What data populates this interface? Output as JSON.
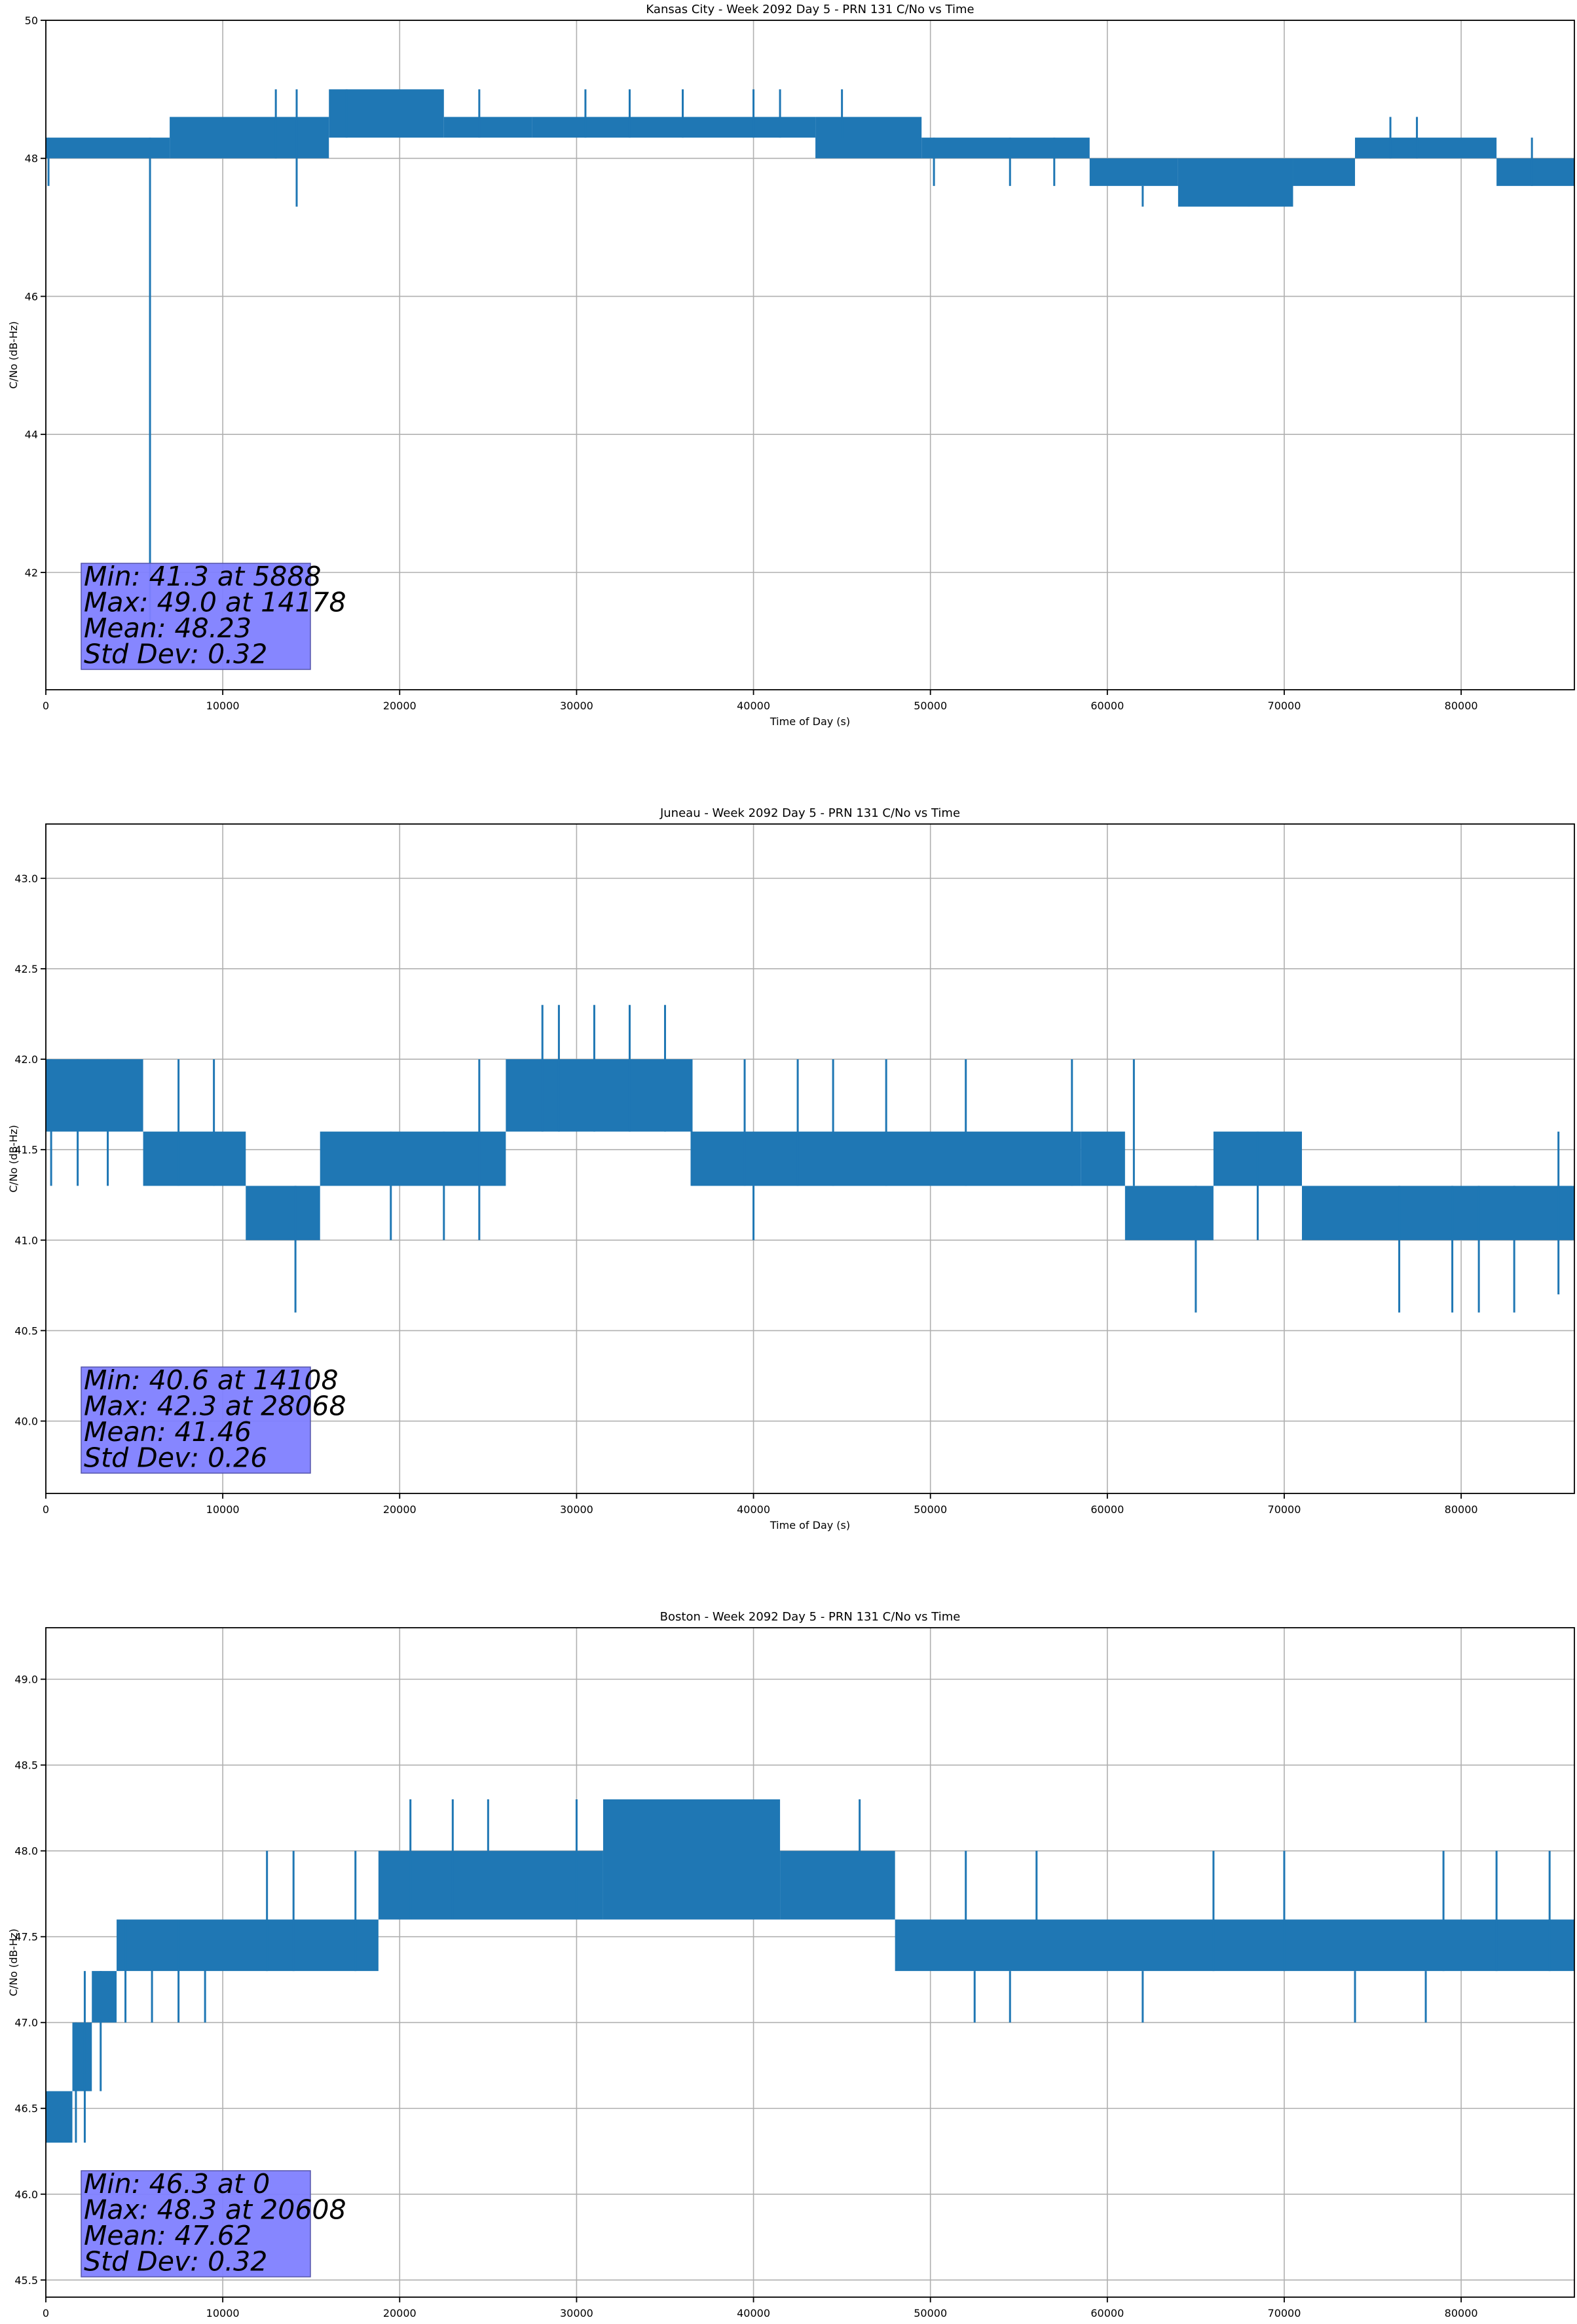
{
  "chart_data": [
    {
      "type": "line",
      "title": "Kansas City - Week 2092 Day 5 - PRN 131 C/No vs Time",
      "xlabel": "Time of Day (s)",
      "ylabel": "C/No (dB-Hz)",
      "xlim": [
        0,
        86400
      ],
      "ylim": [
        40.3,
        50
      ],
      "xticks": [
        0,
        10000,
        20000,
        30000,
        40000,
        50000,
        60000,
        70000,
        80000
      ],
      "yticks": [
        42,
        44,
        46,
        48,
        50
      ],
      "ytick_decimals": 0,
      "grid": true,
      "color": "#1f77b4",
      "band_segments": [
        [
          0,
          7000,
          48.0,
          48.3
        ],
        [
          7000,
          16000,
          48.0,
          48.6
        ],
        [
          16000,
          22500,
          48.3,
          49.0
        ],
        [
          22500,
          27500,
          48.3,
          48.6
        ],
        [
          27500,
          43500,
          48.3,
          48.6
        ],
        [
          43500,
          49500,
          48.0,
          48.6
        ],
        [
          49500,
          59000,
          48.0,
          48.3
        ],
        [
          59000,
          64000,
          47.6,
          48.0
        ],
        [
          64000,
          70500,
          47.3,
          48.0
        ],
        [
          70500,
          74000,
          47.6,
          48.0
        ],
        [
          74000,
          82000,
          48.0,
          48.3
        ],
        [
          82000,
          86400,
          47.6,
          48.0
        ]
      ],
      "spikes": [
        [
          150,
          47.6,
          48.3
        ],
        [
          5888,
          41.3,
          48.3
        ],
        [
          14178,
          47.3,
          49.0
        ],
        [
          13000,
          48.0,
          49.0
        ],
        [
          17000,
          48.3,
          49.0
        ],
        [
          24500,
          48.3,
          49.0
        ],
        [
          30500,
          48.3,
          49.0
        ],
        [
          33000,
          48.3,
          49.0
        ],
        [
          36000,
          48.3,
          49.0
        ],
        [
          40000,
          48.3,
          49.0
        ],
        [
          41500,
          48.3,
          49.0
        ],
        [
          45000,
          48.3,
          49.0
        ],
        [
          50200,
          47.6,
          48.3
        ],
        [
          54500,
          47.6,
          48.3
        ],
        [
          57000,
          47.6,
          48.3
        ],
        [
          62000,
          47.3,
          47.6
        ],
        [
          68000,
          47.3,
          47.6
        ],
        [
          76000,
          48.0,
          48.6
        ],
        [
          77500,
          48.0,
          48.6
        ],
        [
          84000,
          47.6,
          48.3
        ]
      ],
      "stats_box": {
        "lines": [
          "Min: 41.3 at 5888",
          "Max: 49.0 at 14178",
          "Mean: 48.23",
          "Std Dev: 0.32"
        ],
        "color": "#8080ff"
      }
    },
    {
      "type": "line",
      "title": "Juneau - Week 2092 Day 5 - PRN 131 C/No vs Time",
      "xlabel": "Time of Day (s)",
      "ylabel": "C/No (dB-Hz)",
      "xlim": [
        0,
        86400
      ],
      "ylim": [
        39.6,
        43.3
      ],
      "xticks": [
        0,
        10000,
        20000,
        30000,
        40000,
        50000,
        60000,
        70000,
        80000
      ],
      "yticks": [
        40.0,
        40.5,
        41.0,
        41.5,
        42.0,
        42.5,
        43.0
      ],
      "ytick_decimals": 1,
      "grid": true,
      "color": "#1f77b4",
      "band_segments": [
        [
          0,
          5500,
          41.6,
          42.0
        ],
        [
          5500,
          11300,
          41.3,
          41.6
        ],
        [
          11300,
          15500,
          41.0,
          41.3
        ],
        [
          15500,
          26000,
          41.3,
          41.6
        ],
        [
          26000,
          36500,
          41.6,
          42.0
        ],
        [
          36500,
          58500,
          41.3,
          41.6
        ],
        [
          58500,
          61000,
          41.3,
          41.6
        ],
        [
          61000,
          66000,
          41.0,
          41.3
        ],
        [
          66000,
          71000,
          41.3,
          41.6
        ],
        [
          71000,
          86400,
          41.0,
          41.3
        ]
      ],
      "spikes": [
        [
          300,
          41.3,
          42.0
        ],
        [
          1800,
          41.3,
          42.0
        ],
        [
          3500,
          41.3,
          42.0
        ],
        [
          7500,
          41.3,
          42.0
        ],
        [
          9500,
          41.3,
          42.0
        ],
        [
          14108,
          40.6,
          41.3
        ],
        [
          19500,
          41.0,
          41.6
        ],
        [
          22500,
          41.0,
          41.6
        ],
        [
          24500,
          41.0,
          42.0
        ],
        [
          28068,
          41.6,
          42.3
        ],
        [
          29000,
          41.6,
          42.3
        ],
        [
          31000,
          41.6,
          42.3
        ],
        [
          33000,
          41.6,
          42.3
        ],
        [
          35000,
          41.6,
          42.3
        ],
        [
          36500,
          41.3,
          42.0
        ],
        [
          39500,
          41.3,
          42.0
        ],
        [
          40000,
          41.0,
          41.3
        ],
        [
          42500,
          41.3,
          42.0
        ],
        [
          44500,
          41.3,
          42.0
        ],
        [
          47500,
          41.3,
          42.0
        ],
        [
          52000,
          41.3,
          42.0
        ],
        [
          58000,
          41.3,
          42.0
        ],
        [
          61500,
          41.3,
          42.0
        ],
        [
          65000,
          40.6,
          41.3
        ],
        [
          68500,
          41.0,
          41.6
        ],
        [
          76500,
          40.6,
          41.3
        ],
        [
          79500,
          40.6,
          41.3
        ],
        [
          81000,
          40.6,
          41.3
        ],
        [
          83000,
          40.6,
          41.3
        ],
        [
          85500,
          40.7,
          41.6
        ]
      ],
      "stats_box": {
        "lines": [
          "Min: 40.6 at 14108",
          "Max: 42.3 at 28068",
          "Mean: 41.46",
          "Std Dev: 0.26"
        ],
        "color": "#8080ff"
      }
    },
    {
      "type": "line",
      "title": "Boston - Week 2092 Day 5 - PRN 131 C/No vs Time",
      "xlabel": "Time of Day (s)",
      "ylabel": "C/No (dB-Hz)",
      "xlim": [
        0,
        86400
      ],
      "ylim": [
        45.4,
        49.3
      ],
      "xticks": [
        0,
        10000,
        20000,
        30000,
        40000,
        50000,
        60000,
        70000,
        80000
      ],
      "yticks": [
        45.5,
        46.0,
        46.5,
        47.0,
        47.5,
        48.0,
        48.5,
        49.0
      ],
      "ytick_decimals": 1,
      "grid": true,
      "color": "#1f77b4",
      "band_segments": [
        [
          0,
          1500,
          46.3,
          46.6
        ],
        [
          1500,
          2600,
          46.6,
          47.0
        ],
        [
          2600,
          4000,
          47.0,
          47.3
        ],
        [
          4000,
          18800,
          47.3,
          47.6
        ],
        [
          18800,
          31500,
          47.6,
          48.0
        ],
        [
          31500,
          41500,
          47.6,
          48.3
        ],
        [
          41500,
          48000,
          47.6,
          48.0
        ],
        [
          48000,
          86400,
          47.3,
          47.6
        ]
      ],
      "spikes": [
        [
          1700,
          46.3,
          47.0
        ],
        [
          2200,
          46.3,
          47.3
        ],
        [
          3100,
          46.6,
          47.3
        ],
        [
          4500,
          47.0,
          47.6
        ],
        [
          6000,
          47.0,
          47.6
        ],
        [
          7500,
          47.0,
          47.6
        ],
        [
          9000,
          47.0,
          47.6
        ],
        [
          12500,
          47.3,
          48.0
        ],
        [
          14000,
          47.3,
          48.0
        ],
        [
          17500,
          47.3,
          48.0
        ],
        [
          20608,
          47.6,
          48.3
        ],
        [
          23000,
          47.6,
          48.3
        ],
        [
          25000,
          47.6,
          48.3
        ],
        [
          30000,
          47.6,
          48.3
        ],
        [
          46000,
          47.6,
          48.3
        ],
        [
          52000,
          47.6,
          48.0
        ],
        [
          56000,
          47.6,
          48.0
        ],
        [
          52500,
          47.0,
          47.3
        ],
        [
          54500,
          47.0,
          47.3
        ],
        [
          62000,
          47.0,
          47.3
        ],
        [
          66000,
          47.3,
          48.0
        ],
        [
          70000,
          47.3,
          48.0
        ],
        [
          74000,
          47.0,
          47.3
        ],
        [
          78000,
          47.0,
          47.3
        ],
        [
          79000,
          47.3,
          48.0
        ],
        [
          82000,
          47.3,
          48.0
        ],
        [
          85000,
          47.3,
          48.0
        ]
      ],
      "stats_box": {
        "lines": [
          "Min: 46.3 at 0",
          "Max: 48.3 at 20608",
          "Mean: 47.62",
          "Std Dev: 0.32"
        ],
        "color": "#8080ff"
      }
    }
  ]
}
